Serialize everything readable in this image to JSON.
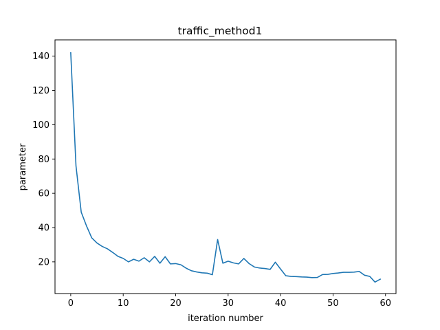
{
  "chart_data": {
    "type": "line",
    "title": "traffic_method1",
    "xlabel": "iteration number",
    "ylabel": "parameter",
    "xlim": [
      -3,
      62
    ],
    "ylim": [
      1.5,
      149.5
    ],
    "xticks": [
      0,
      10,
      20,
      30,
      40,
      50,
      60
    ],
    "yticks": [
      20,
      40,
      60,
      80,
      100,
      120,
      140
    ],
    "grid": false,
    "legend": "none",
    "series": [
      {
        "color": "#1f77b4",
        "x": [
          0,
          1,
          2,
          3,
          4,
          5,
          6,
          7,
          8,
          9,
          10,
          11,
          12,
          13,
          14,
          15,
          16,
          17,
          18,
          19,
          20,
          21,
          22,
          23,
          24,
          25,
          26,
          27,
          28,
          29,
          30,
          31,
          32,
          33,
          34,
          35,
          36,
          37,
          38,
          39,
          40,
          41,
          42,
          43,
          44,
          45,
          46,
          47,
          48,
          49,
          50,
          51,
          52,
          53,
          54,
          55,
          56,
          57,
          58,
          59
        ],
        "y": [
          142,
          76,
          49,
          41,
          34,
          31,
          29,
          27.6,
          25.5,
          23.2,
          22,
          20,
          21.5,
          20.4,
          22.4,
          20,
          23.2,
          19.2,
          23,
          18.8,
          19,
          18.3,
          16.3,
          14.8,
          14.1,
          13.6,
          13.4,
          12.5,
          33,
          19.2,
          20.4,
          19.4,
          18.8,
          22,
          19,
          17,
          16.4,
          16.1,
          15.6,
          19.8,
          15.8,
          11.9,
          11.5,
          11.4,
          11.2,
          11.1,
          10.8,
          10.9,
          12.6,
          12.7,
          13.2,
          13.5,
          13.9,
          13.9,
          14,
          14.4,
          12.2,
          11.5,
          8.2,
          9.9
        ]
      }
    ]
  }
}
